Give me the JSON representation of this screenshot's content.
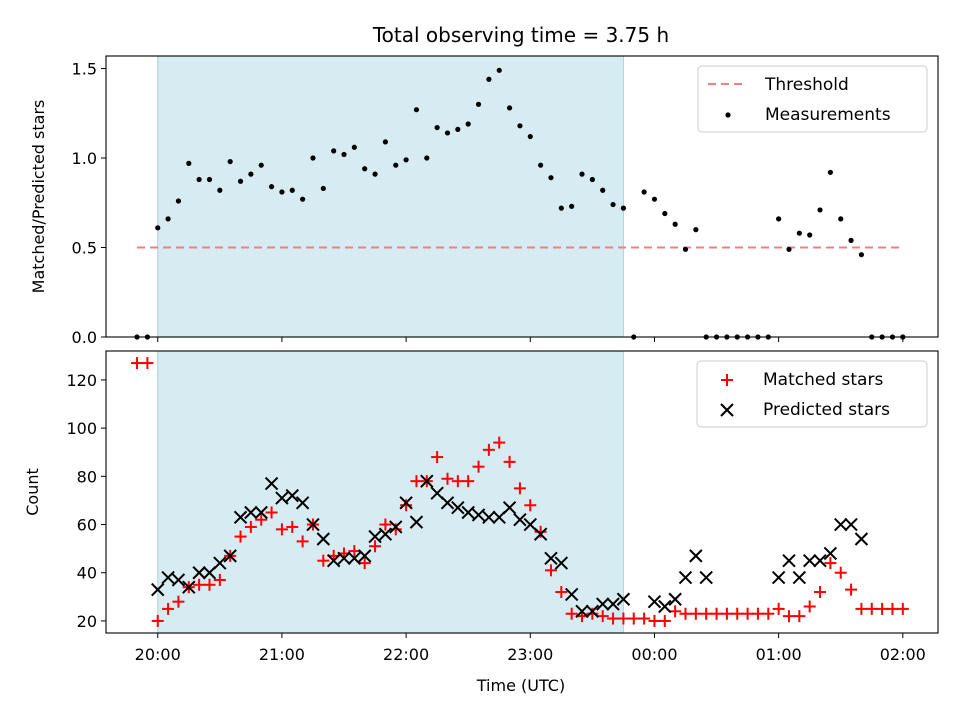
{
  "chart_data": [
    {
      "type": "scatter",
      "title": "Total observing time = 3.75 h",
      "xlabel": "",
      "ylabel": "Matched/Predicted stars",
      "ylim": [
        0,
        1.57
      ],
      "yticks": [
        "0.0",
        "0.5",
        "1.0",
        "1.5"
      ],
      "ytick_values": [
        0,
        0.5,
        1.0,
        1.5
      ],
      "xlim": [
        "19:35",
        "02:17"
      ],
      "xticks": [
        "20:00",
        "21:00",
        "22:00",
        "23:00",
        "00:00",
        "01:00",
        "02:00"
      ],
      "shaded_interval": [
        "20:00",
        "23:45"
      ],
      "shaded_color": "#add8e6",
      "legend_position": "top-right",
      "threshold": {
        "name": "Threshold",
        "value": 0.5,
        "from": "19:50",
        "to": "02:00",
        "color": "#f08080"
      },
      "series": [
        {
          "name": "Measurements",
          "color": "#000000",
          "marker": "dot",
          "points": [
            [
              "19:50",
              0.0
            ],
            [
              "19:55",
              0.0
            ],
            [
              "20:00",
              0.61
            ],
            [
              "20:05",
              0.66
            ],
            [
              "20:10",
              0.76
            ],
            [
              "20:15",
              0.97
            ],
            [
              "20:20",
              0.88
            ],
            [
              "20:25",
              0.88
            ],
            [
              "20:30",
              0.82
            ],
            [
              "20:35",
              0.98
            ],
            [
              "20:40",
              0.87
            ],
            [
              "20:45",
              0.91
            ],
            [
              "20:50",
              0.96
            ],
            [
              "20:55",
              0.84
            ],
            [
              "21:00",
              0.81
            ],
            [
              "21:05",
              0.82
            ],
            [
              "21:10",
              0.77
            ],
            [
              "21:15",
              1.0
            ],
            [
              "21:20",
              0.83
            ],
            [
              "21:25",
              1.04
            ],
            [
              "21:30",
              1.02
            ],
            [
              "21:35",
              1.06
            ],
            [
              "21:40",
              0.94
            ],
            [
              "21:45",
              0.91
            ],
            [
              "21:50",
              1.09
            ],
            [
              "21:55",
              0.96
            ],
            [
              "22:00",
              0.99
            ],
            [
              "22:05",
              1.27
            ],
            [
              "22:10",
              1.0
            ],
            [
              "22:15",
              1.17
            ],
            [
              "22:20",
              1.14
            ],
            [
              "22:25",
              1.16
            ],
            [
              "22:30",
              1.19
            ],
            [
              "22:35",
              1.3
            ],
            [
              "22:40",
              1.44
            ],
            [
              "22:45",
              1.49
            ],
            [
              "22:50",
              1.28
            ],
            [
              "22:55",
              1.18
            ],
            [
              "23:00",
              1.12
            ],
            [
              "23:05",
              0.96
            ],
            [
              "23:10",
              0.89
            ],
            [
              "23:15",
              0.72
            ],
            [
              "23:20",
              0.73
            ],
            [
              "23:25",
              0.91
            ],
            [
              "23:30",
              0.88
            ],
            [
              "23:35",
              0.82
            ],
            [
              "23:40",
              0.74
            ],
            [
              "23:45",
              0.72
            ],
            [
              "23:50",
              0.0
            ],
            [
              "23:55",
              0.81
            ],
            [
              "00:00",
              0.77
            ],
            [
              "00:05",
              0.69
            ],
            [
              "00:10",
              0.63
            ],
            [
              "00:15",
              0.49
            ],
            [
              "00:20",
              0.6
            ],
            [
              "00:25",
              0.0
            ],
            [
              "00:30",
              0.0
            ],
            [
              "00:35",
              0.0
            ],
            [
              "00:40",
              0.0
            ],
            [
              "00:45",
              0.0
            ],
            [
              "00:50",
              0.0
            ],
            [
              "00:55",
              0.0
            ],
            [
              "01:00",
              0.66
            ],
            [
              "01:05",
              0.49
            ],
            [
              "01:10",
              0.58
            ],
            [
              "01:15",
              0.57
            ],
            [
              "01:20",
              0.71
            ],
            [
              "01:25",
              0.92
            ],
            [
              "01:30",
              0.66
            ],
            [
              "01:35",
              0.54
            ],
            [
              "01:40",
              0.46
            ],
            [
              "01:45",
              0.0
            ],
            [
              "01:50",
              0.0
            ],
            [
              "01:55",
              0.0
            ],
            [
              "02:00",
              0.0
            ]
          ]
        }
      ]
    },
    {
      "type": "scatter",
      "title": "",
      "xlabel": "Time (UTC)",
      "ylabel": "Count",
      "ylim": [
        15,
        132
      ],
      "yticks": [
        "20",
        "40",
        "60",
        "80",
        "100",
        "120"
      ],
      "ytick_values": [
        20,
        40,
        60,
        80,
        100,
        120
      ],
      "xlim": [
        "19:35",
        "02:17"
      ],
      "xticks": [
        "20:00",
        "21:00",
        "22:00",
        "23:00",
        "00:00",
        "01:00",
        "02:00"
      ],
      "shaded_interval": [
        "20:00",
        "23:45"
      ],
      "shaded_color": "#add8e6",
      "legend_position": "top-right",
      "x": [
        "19:50",
        "19:55",
        "20:00",
        "20:05",
        "20:10",
        "20:15",
        "20:20",
        "20:25",
        "20:30",
        "20:35",
        "20:40",
        "20:45",
        "20:50",
        "20:55",
        "21:00",
        "21:05",
        "21:10",
        "21:15",
        "21:20",
        "21:25",
        "21:30",
        "21:35",
        "21:40",
        "21:45",
        "21:50",
        "21:55",
        "22:00",
        "22:05",
        "22:10",
        "22:15",
        "22:20",
        "22:25",
        "22:30",
        "22:35",
        "22:40",
        "22:45",
        "22:50",
        "22:55",
        "23:00",
        "23:05",
        "23:10",
        "23:15",
        "23:20",
        "23:25",
        "23:30",
        "23:35",
        "23:40",
        "23:45",
        "23:50",
        "23:55",
        "00:00",
        "00:05",
        "00:10",
        "00:15",
        "00:20",
        "00:25",
        "00:30",
        "00:35",
        "00:40",
        "00:45",
        "00:50",
        "00:55",
        "01:00",
        "01:05",
        "01:10",
        "01:15",
        "01:20",
        "01:25",
        "01:30",
        "01:35",
        "01:40",
        "01:45",
        "01:50",
        "01:55",
        "02:00"
      ],
      "series": [
        {
          "name": "Matched stars",
          "color": "#ff0000",
          "marker": "plus",
          "values": [
            127,
            127,
            20,
            25,
            28,
            34,
            35,
            35,
            37,
            47,
            55,
            59,
            62,
            65,
            58,
            59,
            53,
            60,
            45,
            47,
            48,
            49,
            44,
            51,
            60,
            58,
            68,
            78,
            78,
            88,
            79,
            78,
            78,
            84,
            91,
            94,
            86,
            75,
            68,
            57,
            41,
            32,
            23,
            22,
            23,
            22,
            21,
            21,
            21,
            21,
            20,
            20,
            24,
            23,
            23,
            23,
            23,
            23,
            23,
            23,
            23,
            23,
            25,
            22,
            22,
            26,
            32,
            44,
            40,
            33,
            25,
            25,
            25,
            25,
            25
          ]
        },
        {
          "name": "Predicted stars",
          "color": "#000000",
          "marker": "x",
          "values": [
            null,
            null,
            33,
            38,
            37,
            34,
            40,
            40,
            44,
            47,
            63,
            65,
            65,
            77,
            71,
            72,
            69,
            60,
            54,
            45,
            46,
            46,
            47,
            55,
            56,
            59,
            69,
            61,
            78,
            73,
            69,
            67,
            65,
            64,
            63,
            63,
            67,
            62,
            60,
            56,
            46,
            44,
            31,
            24,
            24,
            27,
            27,
            29,
            null,
            null,
            28,
            26,
            29,
            38,
            47,
            38,
            null,
            null,
            null,
            null,
            null,
            null,
            38,
            45,
            38,
            45,
            45,
            48,
            60,
            60,
            54,
            null,
            null,
            null,
            null
          ]
        }
      ]
    }
  ]
}
